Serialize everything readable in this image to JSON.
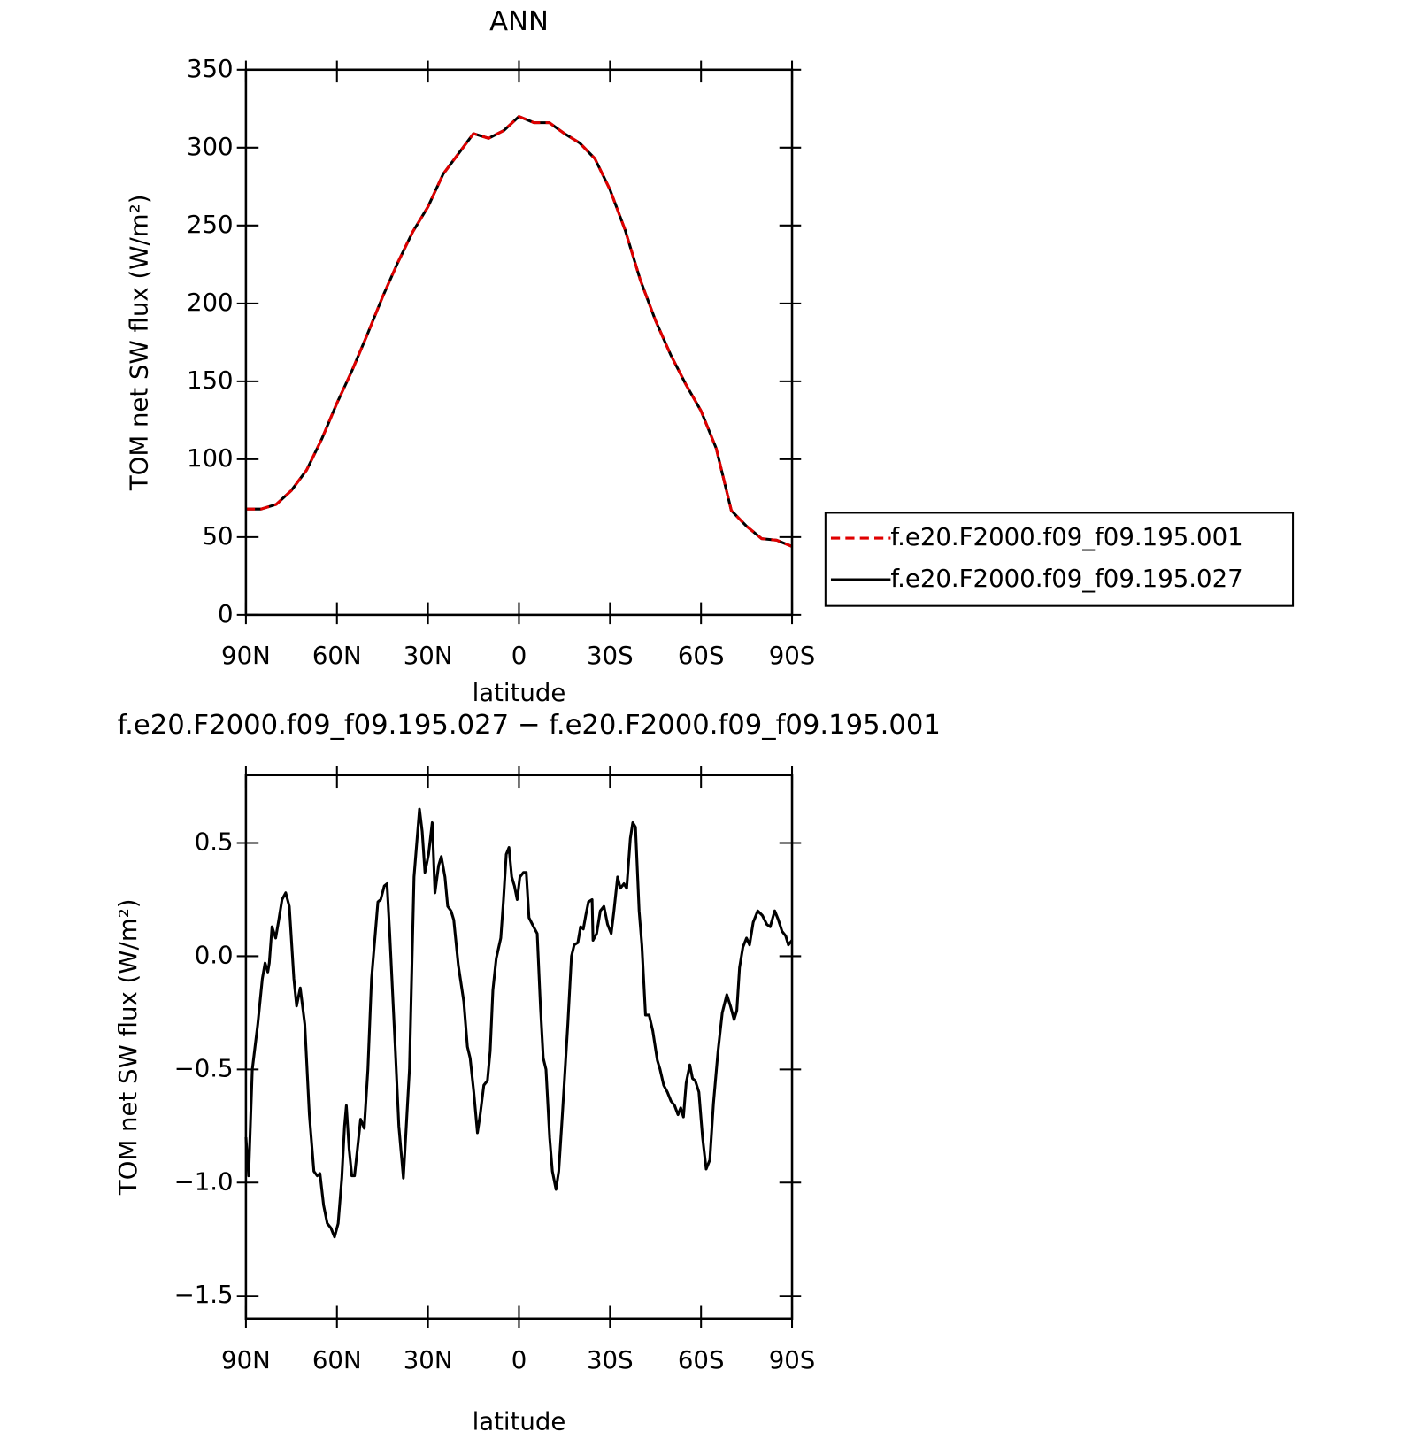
{
  "chart_data": [
    {
      "type": "line",
      "title": "ANN",
      "xlabel": "latitude",
      "ylabel": "TOM net SW flux (W/m²)",
      "x": [
        90,
        85,
        80,
        75,
        70,
        65,
        60,
        55,
        50,
        45,
        40,
        35,
        30,
        25,
        20,
        15,
        10,
        5,
        0,
        -5,
        -10,
        -15,
        -20,
        -25,
        -30,
        -35,
        -40,
        -45,
        -50,
        -55,
        -60,
        -65,
        -70,
        -75,
        -80,
        -85,
        -90
      ],
      "series": [
        {
          "name": "f.e20.F2000.f09_f09.195.001",
          "color": "#e00000",
          "linestyle": "dashed",
          "values": [
            68,
            68,
            71,
            80,
            93,
            113,
            136,
            157,
            180,
            204,
            226,
            246,
            262,
            283,
            296,
            309,
            306,
            311,
            320,
            316,
            316,
            309,
            303,
            293,
            273,
            247,
            215,
            189,
            167,
            148,
            131,
            107,
            67,
            57,
            49,
            48,
            44
          ]
        },
        {
          "name": "f.e20.F2000.f09_f09.195.027",
          "color": "#000000",
          "linestyle": "solid",
          "values": [
            68,
            68,
            71,
            80,
            93,
            113,
            136,
            157,
            180,
            204,
            226,
            246,
            262,
            283,
            296,
            309,
            306,
            311,
            320,
            316,
            316,
            309,
            303,
            293,
            273,
            247,
            215,
            189,
            167,
            148,
            131,
            107,
            67,
            57,
            49,
            48,
            44
          ]
        }
      ],
      "xlim": [
        90,
        -90
      ],
      "xticks": [
        {
          "value": 90,
          "label": "90N"
        },
        {
          "value": 60,
          "label": "60N"
        },
        {
          "value": 30,
          "label": "30N"
        },
        0,
        {
          "value": -30,
          "label": "30S"
        },
        {
          "value": -60,
          "label": "60S"
        },
        {
          "value": -90,
          "label": "90S"
        }
      ],
      "ylim": [
        0,
        350
      ],
      "yticks": [
        0,
        50,
        100,
        150,
        200,
        250,
        300,
        350
      ],
      "legend": "right"
    },
    {
      "type": "line",
      "title": "f.e20.F2000.f09_f09.195.027 − f.e20.F2000.f09_f09.195.001",
      "xlabel": "latitude",
      "ylabel": "TOM net SW flux (W/m²)",
      "x": [
        90,
        89.1,
        87.9,
        86.1,
        84.6,
        83.7,
        82.8,
        82.3,
        81.4,
        80.2,
        79.3,
        78.1,
        76.9,
        75.7,
        74.2,
        73.3,
        72.1,
        70.6,
        69.1,
        67.6,
        66.5,
        65.6,
        64.4,
        63.2,
        62.0,
        60.8,
        59.6,
        58.4,
        57.5,
        56.9,
        56.0,
        55.1,
        54.2,
        53.0,
        52.2,
        51.0,
        49.8,
        48.6,
        46.5,
        45.6,
        44.4,
        43.5,
        42.6,
        40.8,
        39.6,
        38.1,
        36.1,
        34.6,
        32.8,
        31.9,
        31.0,
        29.8,
        28.6,
        27.7,
        26.5,
        25.6,
        24.4,
        23.5,
        22.4,
        21.5,
        20.0,
        18.2,
        17.0,
        16.1,
        14.9,
        13.7,
        12.8,
        11.6,
        10.4,
        9.5,
        8.6,
        7.5,
        6.0,
        5.1,
        4.2,
        3.3,
        2.4,
        1.5,
        0.6,
        -0.3,
        -1.5,
        -2.4,
        -3.3,
        -4.8,
        -6.0,
        -7.1,
        -8.0,
        -8.9,
        -10.1,
        -11.0,
        -12.2,
        -13.1,
        -14.3,
        -16.1,
        -17.3,
        -18.2,
        -19.4,
        -20.3,
        -21.2,
        -22.0,
        -22.9,
        -24.1,
        -24.4,
        -25.6,
        -26.8,
        -28.0,
        -29.2,
        -30.4,
        -31.3,
        -32.5,
        -33.4,
        -34.6,
        -35.5,
        -36.7,
        -37.5,
        -38.4,
        -39.6,
        -40.5,
        -41.7,
        -42.9,
        -44.1,
        -45.6,
        -46.5,
        -47.7,
        -48.9,
        -50.1,
        -51.3,
        -52.4,
        -53.3,
        -54.2,
        -55.1,
        -56.3,
        -57.2,
        -58.1,
        -59.3,
        -60.5,
        -61.7,
        -62.9,
        -64.1,
        -65.6,
        -67.0,
        -68.5,
        -69.7,
        -70.9,
        -71.8,
        -72.7,
        -73.8,
        -75.0,
        -76.0,
        -77.2,
        -78.7,
        -80.2,
        -81.7,
        -82.8,
        -84.3,
        -85.5,
        -86.7,
        -87.9,
        -88.8,
        -90
      ],
      "series": [
        {
          "color": "#000000",
          "linestyle": "solid",
          "values": [
            -0.8,
            -0.97,
            -0.5,
            -0.3,
            -0.1,
            -0.03,
            -0.07,
            -0.03,
            0.13,
            0.08,
            0.15,
            0.25,
            0.28,
            0.22,
            -0.1,
            -0.22,
            -0.14,
            -0.3,
            -0.7,
            -0.95,
            -0.97,
            -0.96,
            -1.1,
            -1.18,
            -1.2,
            -1.24,
            -1.18,
            -0.98,
            -0.75,
            -0.66,
            -0.85,
            -0.97,
            -0.97,
            -0.82,
            -0.72,
            -0.76,
            -0.5,
            -0.1,
            0.24,
            0.25,
            0.31,
            0.32,
            0.1,
            -0.4,
            -0.75,
            -0.98,
            -0.5,
            0.35,
            0.65,
            0.55,
            0.37,
            0.45,
            0.59,
            0.28,
            0.4,
            0.44,
            0.35,
            0.22,
            0.2,
            0.16,
            -0.04,
            -0.2,
            -0.4,
            -0.45,
            -0.6,
            -0.78,
            -0.7,
            -0.57,
            -0.55,
            -0.42,
            -0.15,
            -0.01,
            0.08,
            0.25,
            0.45,
            0.48,
            0.35,
            0.31,
            0.25,
            0.35,
            0.37,
            0.37,
            0.17,
            0.13,
            0.1,
            -0.23,
            -0.45,
            -0.5,
            -0.8,
            -0.95,
            -1.03,
            -0.95,
            -0.7,
            -0.3,
            0.0,
            0.05,
            0.06,
            0.13,
            0.12,
            0.18,
            0.24,
            0.25,
            0.07,
            0.1,
            0.2,
            0.22,
            0.14,
            0.1,
            0.2,
            0.35,
            0.3,
            0.32,
            0.3,
            0.52,
            0.59,
            0.57,
            0.2,
            0.05,
            -0.26,
            -0.26,
            -0.33,
            -0.46,
            -0.5,
            -0.57,
            -0.6,
            -0.64,
            -0.66,
            -0.7,
            -0.67,
            -0.71,
            -0.56,
            -0.48,
            -0.54,
            -0.55,
            -0.6,
            -0.8,
            -0.94,
            -0.9,
            -0.65,
            -0.42,
            -0.25,
            -0.17,
            -0.22,
            -0.28,
            -0.24,
            -0.05,
            0.04,
            0.08,
            0.05,
            0.15,
            0.2,
            0.18,
            0.14,
            0.13,
            0.2,
            0.16,
            0.11,
            0.09,
            0.05,
            0.07
          ]
        }
      ],
      "xlim": [
        90,
        -90
      ],
      "xticks": [
        {
          "value": 90,
          "label": "90N"
        },
        {
          "value": 60,
          "label": "60N"
        },
        {
          "value": 30,
          "label": "30N"
        },
        0,
        {
          "value": -30,
          "label": "30S"
        },
        {
          "value": -60,
          "label": "60S"
        },
        {
          "value": -90,
          "label": "90S"
        }
      ],
      "ylim": [
        -1.6,
        0.8
      ],
      "yticks": [
        {
          "value": -1.5,
          "label": "−1.5"
        },
        {
          "value": -1,
          "label": "−1.0"
        },
        {
          "value": -0.5,
          "label": "−0.5"
        },
        {
          "value": 0,
          "label": "0.0"
        },
        0.5
      ]
    }
  ]
}
